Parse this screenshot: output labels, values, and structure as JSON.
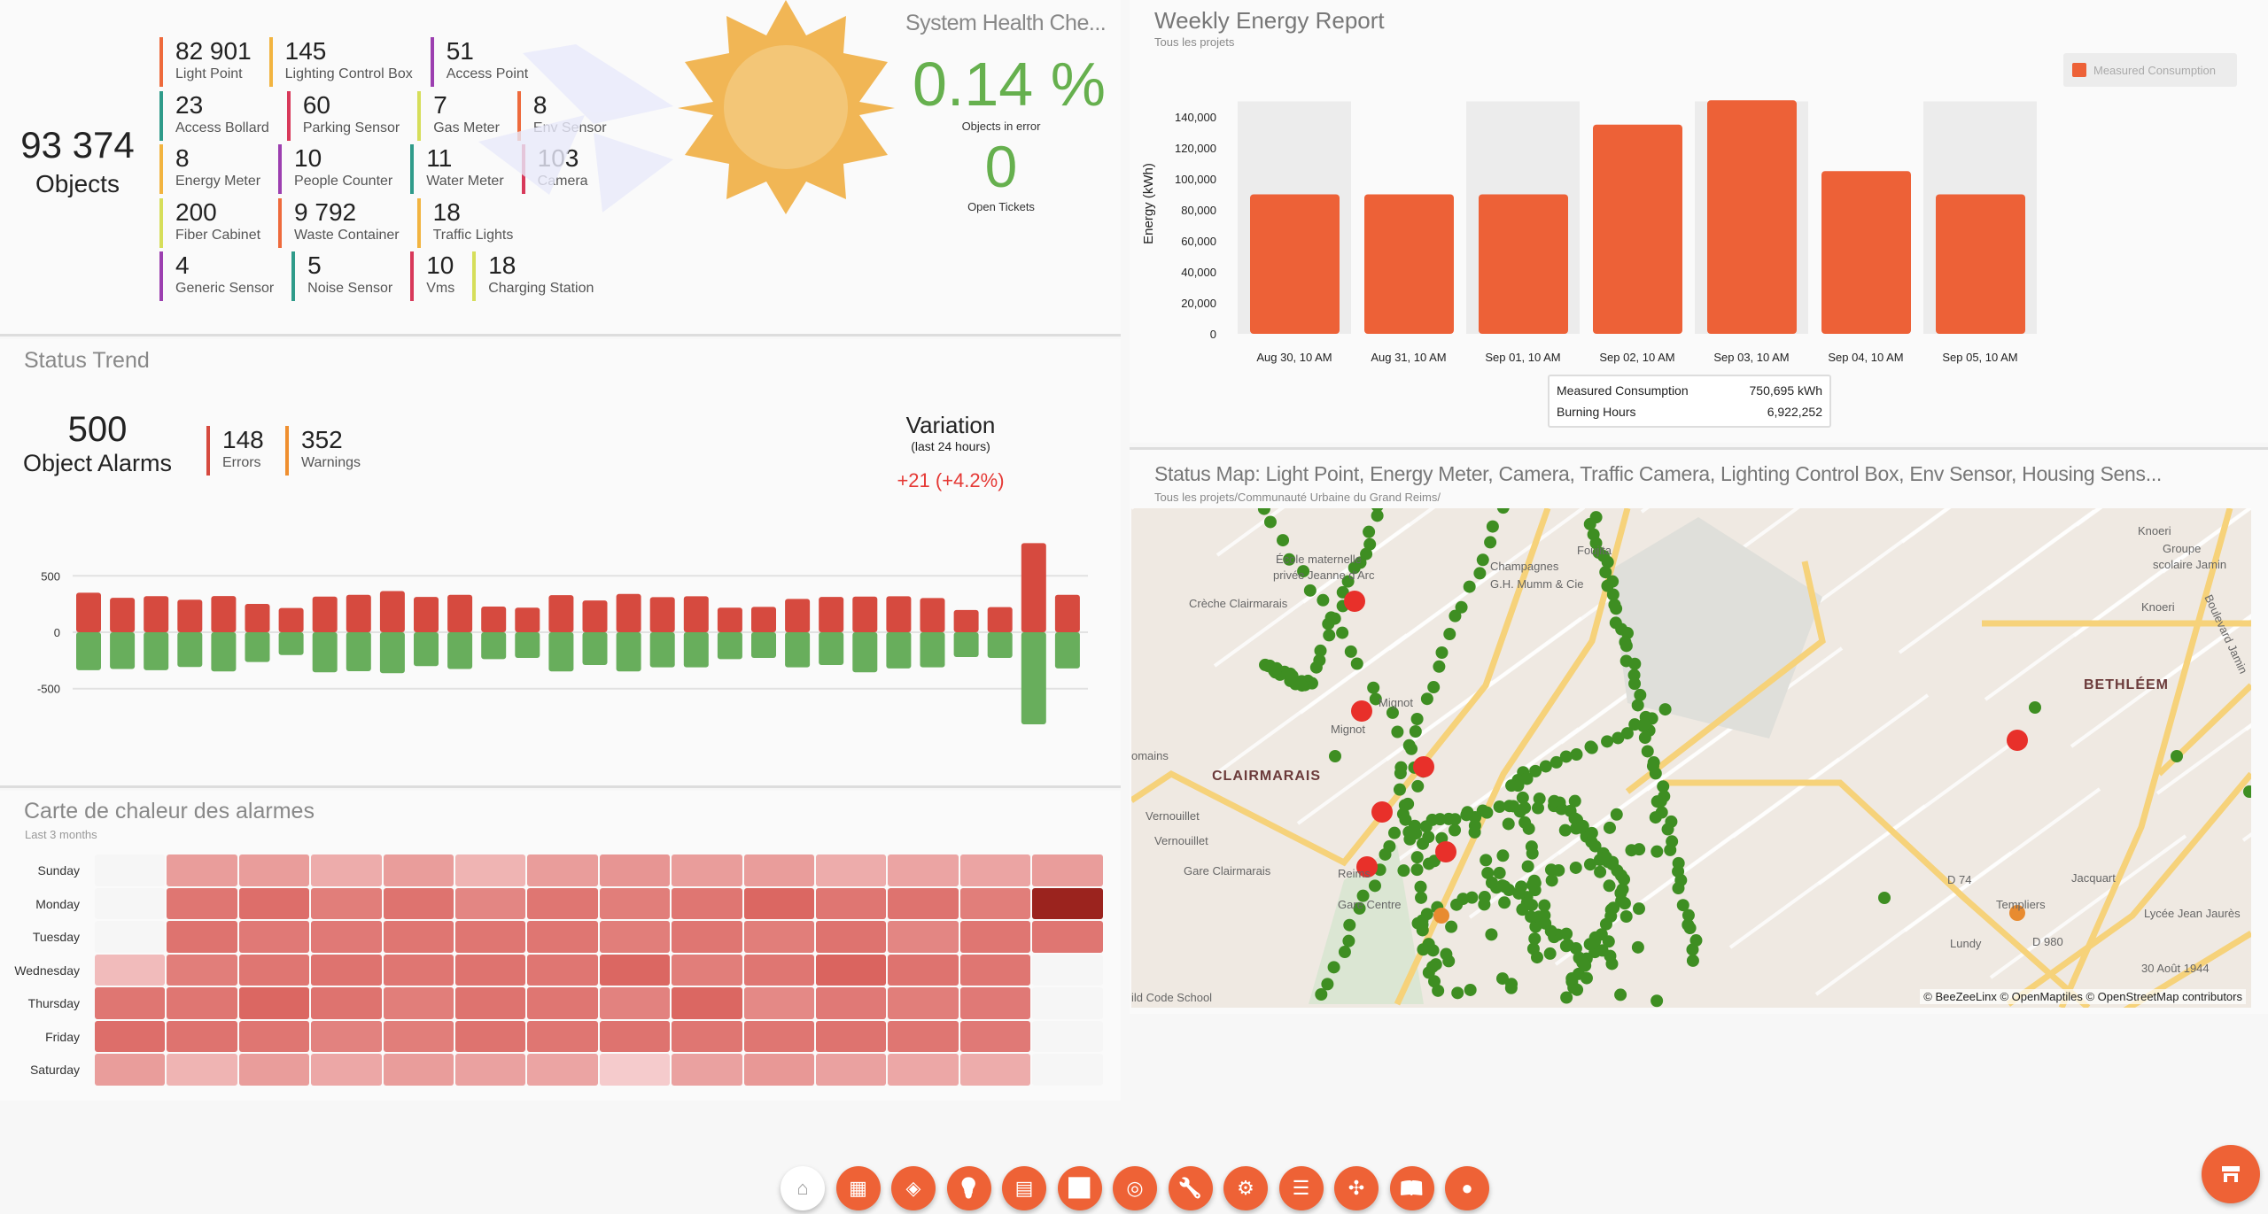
{
  "objects": {
    "total": "93 374",
    "total_label": "Objects",
    "rows": [
      [
        {
          "n": "82 901",
          "l": "Light Point",
          "c": "#ee6a3c"
        },
        {
          "n": "145",
          "l": "Lighting Control Box",
          "c": "#f2b440"
        },
        {
          "n": "51",
          "l": "Access Point",
          "c": "#9c3fb0"
        }
      ],
      [
        {
          "n": "23",
          "l": "Access Bollard",
          "c": "#2f9b8a"
        },
        {
          "n": "60",
          "l": "Parking Sensor",
          "c": "#d8395a"
        },
        {
          "n": "7",
          "l": "Gas Meter",
          "c": "#d6de5a"
        },
        {
          "n": "8",
          "l": "Env Sensor",
          "c": "#ee6a3c"
        }
      ],
      [
        {
          "n": "8",
          "l": "Energy Meter",
          "c": "#f2b440"
        },
        {
          "n": "10",
          "l": "People Counter",
          "c": "#9c3fb0"
        },
        {
          "n": "11",
          "l": "Water Meter",
          "c": "#2f9b8a"
        },
        {
          "n": "103",
          "l": "Camera",
          "c": "#d8395a"
        }
      ],
      [
        {
          "n": "200",
          "l": "Fiber Cabinet",
          "c": "#d6de5a"
        },
        {
          "n": "9 792",
          "l": "Waste Container",
          "c": "#ee6a3c"
        },
        {
          "n": "18",
          "l": "Traffic Lights",
          "c": "#f2b440"
        }
      ],
      [
        {
          "n": "4",
          "l": "Generic Sensor",
          "c": "#9c3fb0"
        },
        {
          "n": "5",
          "l": "Noise Sensor",
          "c": "#2f9b8a"
        },
        {
          "n": "10",
          "l": "Vms",
          "c": "#d8395a"
        },
        {
          "n": "18",
          "l": "Charging Station",
          "c": "#d6de5a"
        }
      ]
    ]
  },
  "health": {
    "title": "System Health Che...",
    "error_pct": "0.14 %",
    "error_label": "Objects in error",
    "tickets": "0",
    "tickets_label": "Open Tickets",
    "color": "#66b04e"
  },
  "trend": {
    "title": "Status Trend",
    "alarms": "500",
    "alarms_label": "Object Alarms",
    "errors": "148",
    "errors_label": "Errors",
    "warnings": "352",
    "warnings_label": "Warnings",
    "variation_title": "Variation",
    "variation_sub": "(last 24 hours)",
    "variation_value": "+21 (+4.2%)"
  },
  "heatmap": {
    "title": "Carte de chaleur des alarmes",
    "subtitle": "Last 3 months",
    "rows": [
      "Sunday",
      "Monday",
      "Tuesday",
      "Wednesday",
      "Thursday",
      "Friday",
      "Saturday"
    ],
    "values": [
      [
        null,
        0.45,
        0.45,
        0.35,
        0.45,
        0.3,
        0.45,
        0.5,
        0.45,
        0.45,
        0.35,
        0.4,
        0.4,
        0.45
      ],
      [
        null,
        0.7,
        0.75,
        0.65,
        0.72,
        0.6,
        0.7,
        0.65,
        0.7,
        0.8,
        0.7,
        0.72,
        0.65,
        1.0
      ],
      [
        null,
        0.72,
        0.68,
        0.68,
        0.7,
        0.7,
        0.7,
        0.65,
        0.7,
        0.65,
        0.72,
        0.6,
        0.7,
        0.7
      ],
      [
        0.25,
        0.65,
        0.7,
        0.72,
        0.7,
        0.72,
        0.7,
        0.8,
        0.65,
        0.7,
        0.82,
        0.72,
        0.7,
        null
      ],
      [
        0.7,
        0.7,
        0.8,
        0.72,
        0.65,
        0.72,
        0.7,
        0.62,
        0.8,
        0.58,
        0.68,
        0.65,
        0.68,
        null
      ],
      [
        0.75,
        0.72,
        0.7,
        0.62,
        0.65,
        0.72,
        0.7,
        0.72,
        0.7,
        0.7,
        0.72,
        0.7,
        0.68,
        null
      ],
      [
        0.45,
        0.3,
        0.45,
        0.38,
        0.45,
        0.42,
        0.4,
        0.15,
        0.42,
        0.48,
        0.42,
        0.38,
        0.35,
        null
      ]
    ]
  },
  "energy": {
    "title": "Weekly Energy Report",
    "subtitle": "Tous les projets",
    "summary": [
      {
        "label": "Measured Consumption",
        "value": "750,695 kWh"
      },
      {
        "label": "Burning Hours",
        "value": "6,922,252"
      }
    ]
  },
  "map": {
    "title": "Status Map: Light Point, Energy Meter, Camera, Traffic Camera, Lighting Control Box, Env Sensor, Housing Sens...",
    "subtitle": "Tous les projets/Communauté Urbaine du Grand Reims/",
    "attribution": "© BeeZeeLinx © OpenMaptiles © OpenStreetMap contributors",
    "labels": [
      "École maternelle",
      "privée Jeanne d'Arc",
      "Crèche Clairmarais",
      "Mignot",
      "Mignot",
      "CLAIRMARAIS",
      "Vernouillet",
      "Vernouillet",
      "Gare Clairmarais",
      "Reims",
      "Gare Centre",
      "ild Code School",
      "Champagnes",
      "G.H. Mumm & Cie",
      "Foujita",
      "Knoeri",
      "Groupe",
      "scolaire Jamin",
      "Knoeri",
      "Boulevard Jamin",
      "BETHLÉEM",
      "Templiers",
      "D 74",
      "Jacquart",
      "Lycée Jean Jaurès",
      "D 980",
      "Lundy",
      "30 Août 1944",
      "omains"
    ]
  },
  "toolbar": [
    "home-icon",
    "dashboard-icon",
    "objects-icon",
    "lightbulb-icon",
    "table-icon",
    "monitor-icon",
    "radar-icon",
    "wrench-icon",
    "robot-arm-icon",
    "report-icon",
    "network-icon",
    "book-icon",
    "user-icon"
  ],
  "chart_data": [
    {
      "type": "bar",
      "title": "Weekly Energy Report",
      "categories": [
        "Aug 30, 10 AM",
        "Aug 31, 10 AM",
        "Sep 01, 10 AM",
        "Sep 02, 10 AM",
        "Sep 03, 10 AM",
        "Sep 04, 10 AM",
        "Sep 05, 10 AM"
      ],
      "series": [
        {
          "name": "Measured Consumption",
          "values": [
            90000,
            90000,
            90000,
            135000,
            150695,
            105000,
            90000
          ],
          "color": "#ed6137"
        }
      ],
      "ylabel": "Energy (kWh)",
      "yticks": [
        "0",
        "20,000",
        "40,000",
        "60,000",
        "80,000",
        "100,000",
        "120,000",
        "140,000"
      ],
      "ylim": [
        0,
        150000
      ],
      "legend": "top-right"
    },
    {
      "type": "bar",
      "title": "Status Trend",
      "yticks": [
        "500",
        "0",
        "-500"
      ],
      "ylim": [
        -850,
        850
      ],
      "series": [
        {
          "name": "Errors",
          "color": "#d64a3f",
          "values": [
            350,
            305,
            320,
            288,
            321,
            251,
            215,
            316,
            332,
            365,
            313,
            332,
            228,
            218,
            329,
            282,
            339,
            311,
            319,
            218,
            225,
            295,
            313,
            316,
            319,
            303,
            197,
            223,
            790,
            332
          ]
        },
        {
          "name": "Ok",
          "color": "#68ae5c",
          "values": [
            -337,
            -326,
            -337,
            -308,
            -347,
            -264,
            -202,
            -355,
            -345,
            -363,
            -300,
            -326,
            -238,
            -228,
            -347,
            -290,
            -347,
            -311,
            -311,
            -238,
            -228,
            -311,
            -290,
            -355,
            -321,
            -311,
            -220,
            -228,
            -816,
            -321
          ]
        }
      ]
    }
  ]
}
